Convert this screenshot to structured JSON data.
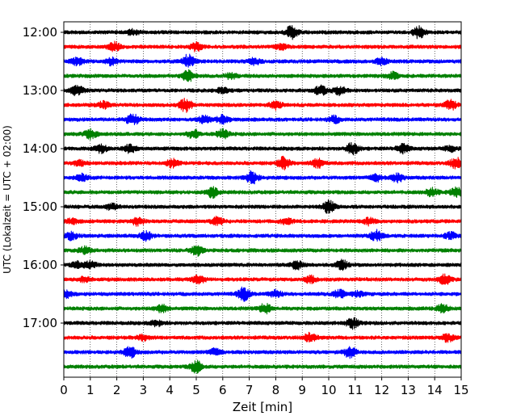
{
  "chart_data": {
    "type": "line",
    "title": "",
    "xlabel": "Zeit  [min]",
    "ylabel": "UTC (Lokalzeit = UTC + 02:00)",
    "xlim": [
      0,
      15
    ],
    "x_ticks": [
      "0",
      "1",
      "2",
      "3",
      "4",
      "5",
      "6",
      "7",
      "8",
      "9",
      "10",
      "11",
      "12",
      "13",
      "14",
      "15"
    ],
    "y_ticks": [
      "12:00",
      "13:00",
      "14:00",
      "15:00",
      "16:00",
      "17:00"
    ],
    "grid": "vertical-dotted",
    "colors": [
      "#000000",
      "#ff0000",
      "#0000ff",
      "#008000"
    ],
    "traces": [
      {
        "start": "12:00",
        "color": "#000000",
        "bursts": [
          [
            2.6,
            0.4
          ],
          [
            8.6,
            1.0
          ],
          [
            13.4,
            0.9
          ]
        ]
      },
      {
        "start": "12:15",
        "color": "#ff0000",
        "bursts": [
          [
            1.9,
            0.7
          ],
          [
            5.0,
            0.6
          ],
          [
            8.2,
            0.4
          ]
        ]
      },
      {
        "start": "12:30",
        "color": "#0000ff",
        "bursts": [
          [
            0.5,
            0.6
          ],
          [
            1.8,
            0.5
          ],
          [
            4.7,
            1.0
          ],
          [
            7.2,
            0.5
          ],
          [
            12.0,
            0.5
          ]
        ]
      },
      {
        "start": "12:45",
        "color": "#008000",
        "bursts": [
          [
            4.7,
            0.8
          ],
          [
            12.4,
            0.5
          ],
          [
            6.3,
            0.4
          ]
        ]
      },
      {
        "start": "13:00",
        "color": "#000000",
        "bursts": [
          [
            0.5,
            0.8
          ],
          [
            9.7,
            0.7
          ],
          [
            10.4,
            0.6
          ],
          [
            6.0,
            0.4
          ]
        ]
      },
      {
        "start": "13:15",
        "color": "#ff0000",
        "bursts": [
          [
            1.5,
            0.5
          ],
          [
            4.6,
            1.0
          ],
          [
            8.0,
            0.6
          ],
          [
            14.6,
            0.7
          ]
        ]
      },
      {
        "start": "13:30",
        "color": "#0000ff",
        "bursts": [
          [
            2.6,
            0.9
          ],
          [
            6.0,
            0.6
          ],
          [
            5.3,
            0.5
          ],
          [
            10.2,
            0.5
          ]
        ]
      },
      {
        "start": "13:45",
        "color": "#008000",
        "bursts": [
          [
            1.0,
            0.7
          ],
          [
            4.9,
            0.6
          ],
          [
            6.0,
            0.7
          ]
        ]
      },
      {
        "start": "14:00",
        "color": "#000000",
        "bursts": [
          [
            1.4,
            0.6
          ],
          [
            2.5,
            0.6
          ],
          [
            10.9,
            0.9
          ],
          [
            12.8,
            0.7
          ],
          [
            14.6,
            0.4
          ]
        ]
      },
      {
        "start": "14:15",
        "color": "#ff0000",
        "bursts": [
          [
            0.6,
            0.4
          ],
          [
            4.1,
            0.6
          ],
          [
            8.3,
            0.9
          ],
          [
            9.6,
            0.7
          ],
          [
            14.8,
            0.8
          ]
        ]
      },
      {
        "start": "14:30",
        "color": "#0000ff",
        "bursts": [
          [
            0.7,
            0.5
          ],
          [
            7.1,
            1.0
          ],
          [
            11.8,
            0.5
          ],
          [
            12.6,
            0.6
          ]
        ]
      },
      {
        "start": "14:45",
        "color": "#008000",
        "bursts": [
          [
            5.6,
            0.8
          ],
          [
            13.9,
            0.6
          ],
          [
            14.8,
            0.7
          ]
        ]
      },
      {
        "start": "15:00",
        "color": "#000000",
        "bursts": [
          [
            1.8,
            0.4
          ],
          [
            10.0,
            1.0
          ]
        ]
      },
      {
        "start": "15:15",
        "color": "#ff0000",
        "bursts": [
          [
            0.3,
            0.4
          ],
          [
            2.8,
            0.6
          ],
          [
            5.8,
            0.6
          ],
          [
            8.4,
            0.4
          ],
          [
            11.5,
            0.5
          ]
        ]
      },
      {
        "start": "15:30",
        "color": "#0000ff",
        "bursts": [
          [
            0.3,
            0.6
          ],
          [
            3.1,
            0.7
          ],
          [
            11.8,
            0.8
          ],
          [
            14.6,
            0.5
          ]
        ]
      },
      {
        "start": "15:45",
        "color": "#008000",
        "bursts": [
          [
            0.8,
            0.5
          ],
          [
            5.0,
            0.8
          ]
        ]
      },
      {
        "start": "16:00",
        "color": "#000000",
        "bursts": [
          [
            0.5,
            0.5
          ],
          [
            1.0,
            0.5
          ],
          [
            8.8,
            0.6
          ],
          [
            10.5,
            0.7
          ]
        ]
      },
      {
        "start": "16:15",
        "color": "#ff0000",
        "bursts": [
          [
            0.8,
            0.4
          ],
          [
            5.1,
            0.6
          ],
          [
            9.3,
            0.5
          ],
          [
            14.4,
            0.8
          ]
        ]
      },
      {
        "start": "16:30",
        "color": "#0000ff",
        "bursts": [
          [
            0.1,
            0.5
          ],
          [
            6.8,
            1.0
          ],
          [
            8.0,
            0.5
          ],
          [
            10.4,
            0.6
          ],
          [
            11.1,
            0.4
          ]
        ]
      },
      {
        "start": "16:45",
        "color": "#008000",
        "bursts": [
          [
            3.7,
            0.6
          ],
          [
            7.6,
            0.7
          ],
          [
            14.3,
            0.6
          ]
        ]
      },
      {
        "start": "17:00",
        "color": "#000000",
        "bursts": [
          [
            3.5,
            0.4
          ],
          [
            10.9,
            0.8
          ]
        ]
      },
      {
        "start": "17:15",
        "color": "#ff0000",
        "bursts": [
          [
            3.0,
            0.4
          ],
          [
            9.3,
            0.7
          ],
          [
            14.5,
            0.6
          ]
        ]
      },
      {
        "start": "17:30",
        "color": "#0000ff",
        "bursts": [
          [
            2.5,
            0.8
          ],
          [
            5.7,
            0.5
          ],
          [
            10.8,
            0.9
          ]
        ]
      },
      {
        "start": "17:45",
        "color": "#008000",
        "bursts": [
          [
            5.0,
            0.9
          ]
        ]
      }
    ]
  }
}
